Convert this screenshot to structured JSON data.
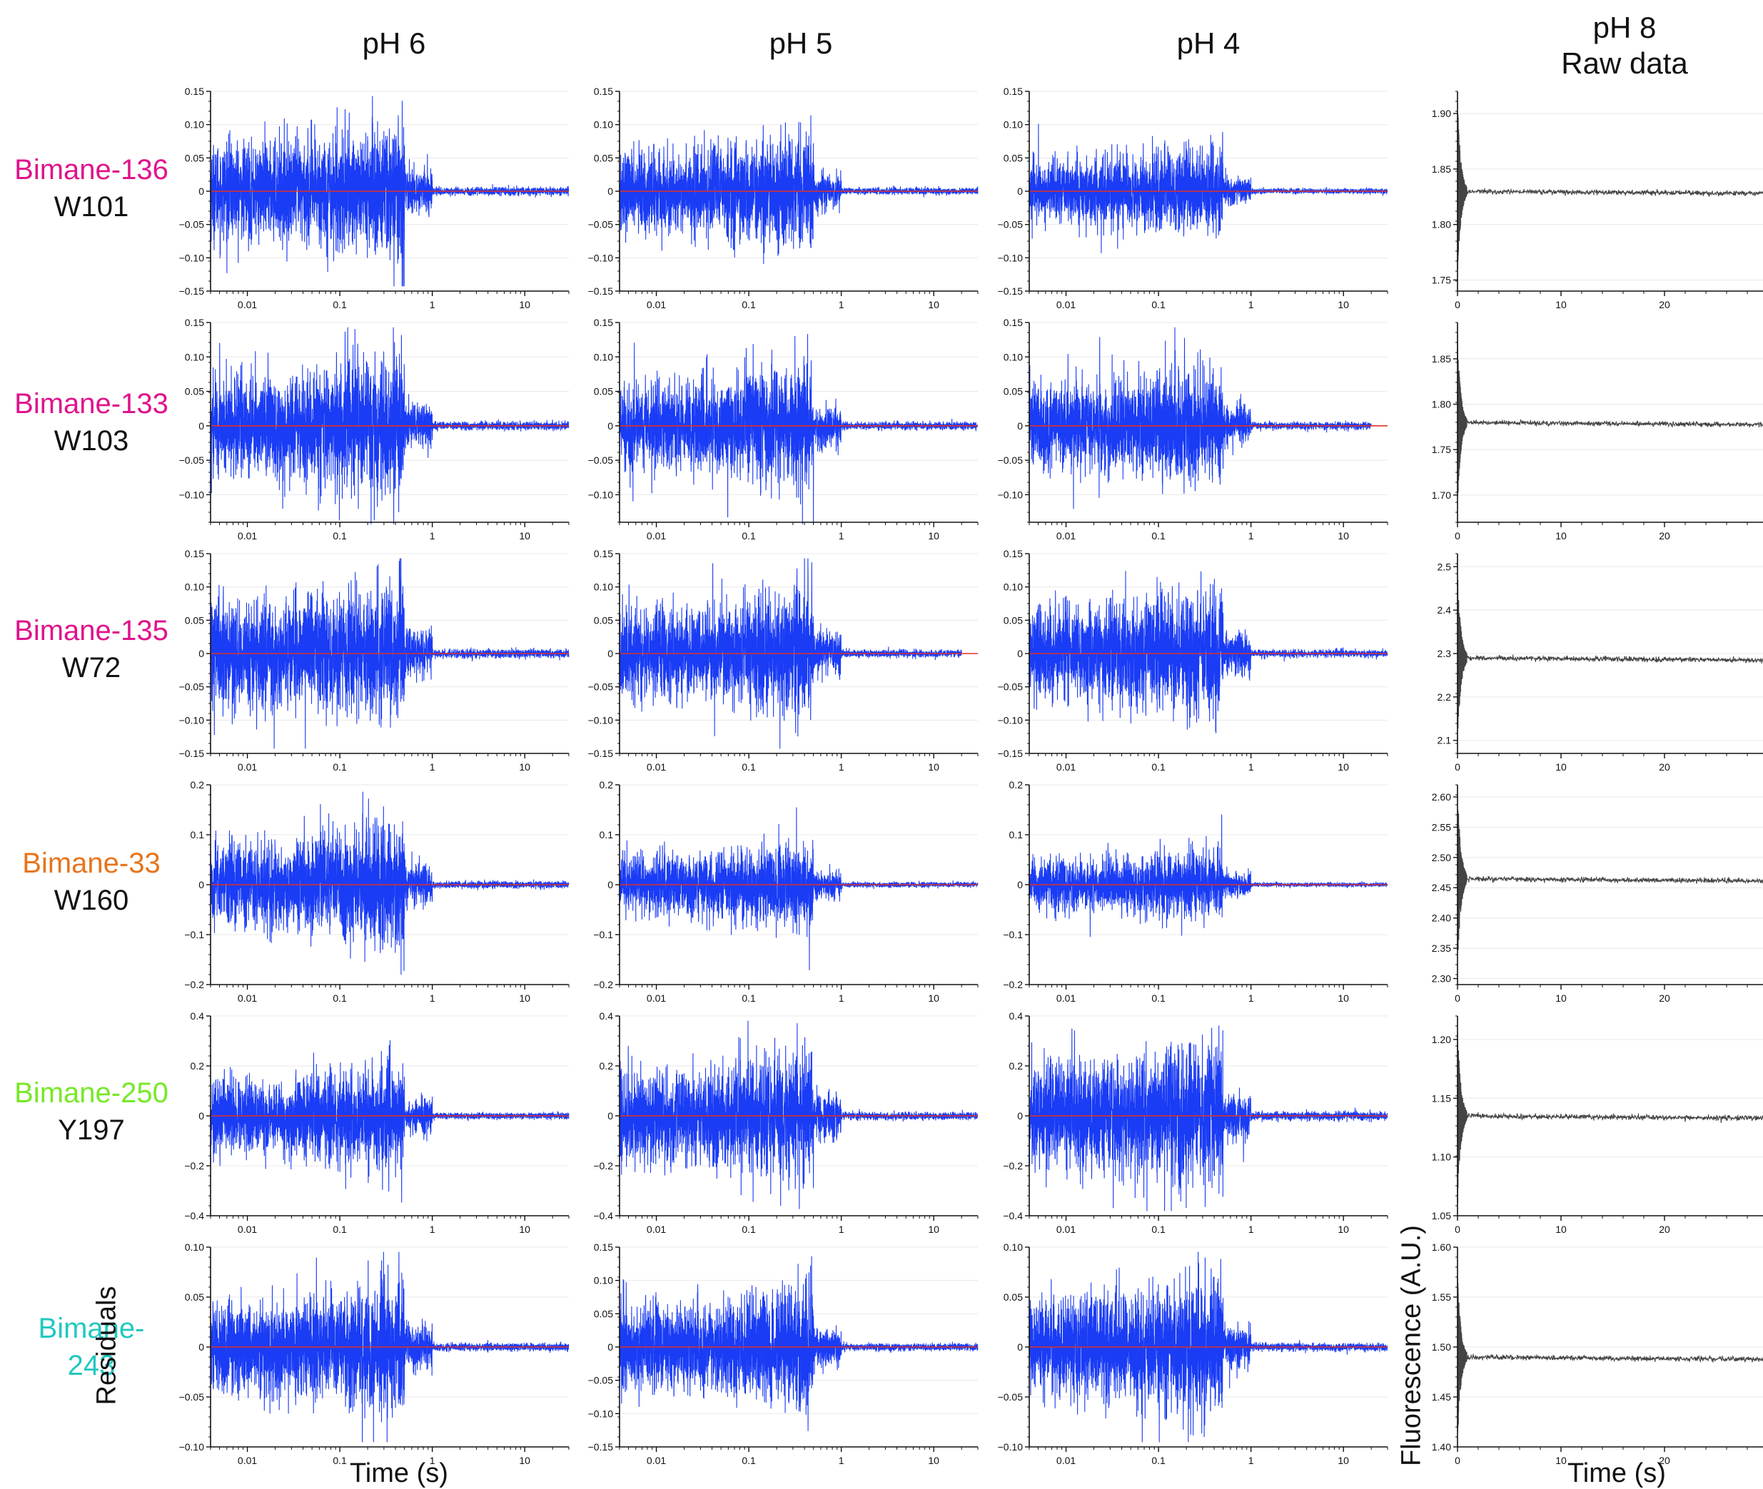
{
  "figure": {
    "col_headers": [
      "pH 6",
      "pH 5",
      "pH 4",
      "pH 8",
      "Raw data"
    ],
    "rows": [
      {
        "label_line1": "Bimane-136",
        "label_line2": "W101",
        "color1": "#e0138c",
        "color2": "#111111"
      },
      {
        "label_line1": "Bimane-133",
        "label_line2": "W103",
        "color1": "#e0138c",
        "color2": "#111111"
      },
      {
        "label_line1": "Bimane-135",
        "label_line2": "W72",
        "color1": "#e0138c",
        "color2": "#111111"
      },
      {
        "label_line1": "Bimane-33",
        "label_line2": "W160",
        "color1": "#e8741c",
        "color2": "#111111"
      },
      {
        "label_line1": "Bimane-250",
        "label_line2": "Y197",
        "color1": "#77e827",
        "color2": "#111111"
      },
      {
        "label_line1": "Bimane-",
        "label_line2": "243",
        "color1": "#22c8c0",
        "color2": "#22c8c0"
      }
    ],
    "residuals_ylabel": "Residuals",
    "raw_ylabel": "Fluorescence (A.U.)",
    "residuals_xlabel": "Time (s)",
    "raw_xlabel": "Time (s)",
    "colors": {
      "residual_trace": "#1a3cf5",
      "zero_line": "#e0302a",
      "raw_trace": "#444444",
      "grid": "#e8e8e8",
      "axis": "#111111"
    }
  },
  "chart_data": [
    {
      "type": "line",
      "panel": "residuals",
      "row": 0,
      "col": "pH 6",
      "xscale": "log",
      "xlim": [
        0.004,
        30
      ],
      "xticks": [
        "0.01",
        "0.1",
        "1",
        "10"
      ],
      "ylim": [
        -0.15,
        0.15
      ],
      "yticks": [
        "0.15",
        "0.10",
        "0.05",
        "0",
        "−0.05",
        "−0.10",
        "−0.15"
      ],
      "amplitude": 0.085,
      "end_time": 30
    },
    {
      "type": "line",
      "panel": "residuals",
      "row": 0,
      "col": "pH 5",
      "xscale": "log",
      "xlim": [
        0.004,
        30
      ],
      "xticks": [
        "0.01",
        "0.1",
        "1",
        "10"
      ],
      "ylim": [
        -0.15,
        0.15
      ],
      "yticks": [
        "0.15",
        "0.10",
        "0.05",
        "0",
        "−0.05",
        "−0.10",
        "−0.15"
      ],
      "amplitude": 0.07,
      "end_time": 30
    },
    {
      "type": "line",
      "panel": "residuals",
      "row": 0,
      "col": "pH 4",
      "xscale": "log",
      "xlim": [
        0.004,
        30
      ],
      "xticks": [
        "0.01",
        "0.1",
        "1",
        "10"
      ],
      "ylim": [
        -0.15,
        0.15
      ],
      "yticks": [
        "0.15",
        "0.10",
        "0.05",
        "0",
        "−0.05",
        "−0.10",
        "−0.15"
      ],
      "amplitude": 0.055,
      "end_time": 30
    },
    {
      "type": "line",
      "panel": "raw",
      "row": 0,
      "col": "pH 8 Raw data",
      "xlim": [
        0,
        30
      ],
      "xticks": [
        "0",
        "10",
        "20"
      ],
      "ylim": [
        1.74,
        1.92
      ],
      "yticks": [
        "1.90",
        "1.85",
        "1.80",
        "1.75"
      ],
      "plateau": 1.83,
      "spike_range": [
        1.75,
        1.92
      ]
    },
    {
      "type": "line",
      "panel": "residuals",
      "row": 1,
      "col": "pH 6",
      "xscale": "log",
      "xlim": [
        0.004,
        30
      ],
      "xticks": [
        "0.01",
        "0.1",
        "1",
        "10"
      ],
      "ylim": [
        -0.14,
        0.15
      ],
      "yticks": [
        "0.15",
        "0.10",
        "0.05",
        "0",
        "−0.05",
        "−0.10"
      ],
      "amplitude": 0.085,
      "end_time": 30
    },
    {
      "type": "line",
      "panel": "residuals",
      "row": 1,
      "col": "pH 5",
      "xscale": "log",
      "xlim": [
        0.004,
        30
      ],
      "xticks": [
        "0.01",
        "0.1",
        "1",
        "10"
      ],
      "ylim": [
        -0.14,
        0.15
      ],
      "yticks": [
        "0.15",
        "0.10",
        "0.05",
        "0",
        "−0.05",
        "−0.10"
      ],
      "amplitude": 0.075,
      "end_time": 30
    },
    {
      "type": "line",
      "panel": "residuals",
      "row": 1,
      "col": "pH 4",
      "xscale": "log",
      "xlim": [
        0.004,
        30
      ],
      "xticks": [
        "0.01",
        "0.1",
        "1",
        "10"
      ],
      "ylim": [
        -0.14,
        0.15
      ],
      "yticks": [
        "0.15",
        "0.10",
        "0.05",
        "0",
        "−0.05",
        "−0.10"
      ],
      "amplitude": 0.075,
      "end_time": 20
    },
    {
      "type": "line",
      "panel": "raw",
      "row": 1,
      "col": "pH 8 Raw data",
      "xlim": [
        0,
        30
      ],
      "xticks": [
        "0",
        "10",
        "20"
      ],
      "ylim": [
        1.67,
        1.89
      ],
      "yticks": [
        "1.85",
        "1.80",
        "1.75",
        "1.70"
      ],
      "plateau": 1.78,
      "spike_range": [
        1.68,
        1.88
      ]
    },
    {
      "type": "line",
      "panel": "residuals",
      "row": 2,
      "col": "pH 6",
      "xscale": "log",
      "xlim": [
        0.004,
        30
      ],
      "xticks": [
        "0.01",
        "0.1",
        "1",
        "10"
      ],
      "ylim": [
        -0.15,
        0.15
      ],
      "yticks": [
        "0.15",
        "0.10",
        "0.05",
        "0",
        "−0.05",
        "−0.10",
        "−0.15"
      ],
      "amplitude": 0.09,
      "end_time": 30
    },
    {
      "type": "line",
      "panel": "residuals",
      "row": 2,
      "col": "pH 5",
      "xscale": "log",
      "xlim": [
        0.004,
        30
      ],
      "xticks": [
        "0.01",
        "0.1",
        "1",
        "10"
      ],
      "ylim": [
        -0.15,
        0.15
      ],
      "yticks": [
        "0.15",
        "0.10",
        "0.05",
        "0",
        "−0.05",
        "−0.10",
        "−0.15"
      ],
      "amplitude": 0.08,
      "end_time": 20
    },
    {
      "type": "line",
      "panel": "residuals",
      "row": 2,
      "col": "pH 4",
      "xscale": "log",
      "xlim": [
        0.004,
        30
      ],
      "xticks": [
        "0.01",
        "0.1",
        "1",
        "10"
      ],
      "ylim": [
        -0.15,
        0.15
      ],
      "yticks": [
        "0.15",
        "0.10",
        "0.05",
        "0",
        "−0.05",
        "−0.10",
        "−0.15"
      ],
      "amplitude": 0.08,
      "end_time": 30
    },
    {
      "type": "line",
      "panel": "raw",
      "row": 2,
      "col": "pH 8 Raw data",
      "xlim": [
        0,
        30
      ],
      "xticks": [
        "0",
        "10",
        "20"
      ],
      "ylim": [
        2.07,
        2.53
      ],
      "yticks": [
        "2.5",
        "2.4",
        "2.3",
        "2.2",
        "2.1"
      ],
      "plateau": 2.29,
      "spike_range": [
        2.09,
        2.52
      ]
    },
    {
      "type": "line",
      "panel": "residuals",
      "row": 3,
      "col": "pH 6",
      "xscale": "log",
      "xlim": [
        0.004,
        30
      ],
      "xticks": [
        "0.01",
        "0.1",
        "1",
        "10"
      ],
      "ylim": [
        -0.2,
        0.2
      ],
      "yticks": [
        "0.2",
        "0.1",
        "0",
        "−0.1",
        "−0.2"
      ],
      "amplitude": 0.1,
      "end_time": 30
    },
    {
      "type": "line",
      "panel": "residuals",
      "row": 3,
      "col": "pH 5",
      "xscale": "log",
      "xlim": [
        0.004,
        30
      ],
      "xticks": [
        "0.01",
        "0.1",
        "1",
        "10"
      ],
      "ylim": [
        -0.2,
        0.2
      ],
      "yticks": [
        "0.2",
        "0.1",
        "0",
        "−0.1",
        "−0.2"
      ],
      "amplitude": 0.07,
      "end_time": 30
    },
    {
      "type": "line",
      "panel": "residuals",
      "row": 3,
      "col": "pH 4",
      "xscale": "log",
      "xlim": [
        0.004,
        30
      ],
      "xticks": [
        "0.01",
        "0.1",
        "1",
        "10"
      ],
      "ylim": [
        -0.2,
        0.2
      ],
      "yticks": [
        "0.2",
        "0.1",
        "0",
        "−0.1",
        "−0.2"
      ],
      "amplitude": 0.06,
      "end_time": 30
    },
    {
      "type": "line",
      "panel": "raw",
      "row": 3,
      "col": "pH 8 Raw data",
      "xlim": [
        0,
        30
      ],
      "xticks": [
        "0",
        "10",
        "20"
      ],
      "ylim": [
        2.29,
        2.62
      ],
      "yticks": [
        "2.60",
        "2.55",
        "2.50",
        "2.45",
        "2.40",
        "2.35",
        "2.30"
      ],
      "plateau": 2.465,
      "spike_range": [
        2.3,
        2.61
      ]
    },
    {
      "type": "line",
      "panel": "residuals",
      "row": 4,
      "col": "pH 6",
      "xscale": "log",
      "xlim": [
        0.004,
        30
      ],
      "xticks": [
        "0.01",
        "0.1",
        "1",
        "10"
      ],
      "ylim": [
        -0.4,
        0.4
      ],
      "yticks": [
        "0.4",
        "0.2",
        "0",
        "−0.2",
        "−0.4"
      ],
      "amplitude": 0.18,
      "end_time": 30
    },
    {
      "type": "line",
      "panel": "residuals",
      "row": 4,
      "col": "pH 5",
      "xscale": "log",
      "xlim": [
        0.004,
        30
      ],
      "xticks": [
        "0.01",
        "0.1",
        "1",
        "10"
      ],
      "ylim": [
        -0.4,
        0.4
      ],
      "yticks": [
        "0.4",
        "0.2",
        "0",
        "−0.2",
        "−0.4"
      ],
      "amplitude": 0.22,
      "end_time": 30
    },
    {
      "type": "line",
      "panel": "residuals",
      "row": 4,
      "col": "pH 4",
      "xscale": "log",
      "xlim": [
        0.004,
        30
      ],
      "xticks": [
        "0.01",
        "0.1",
        "1",
        "10"
      ],
      "ylim": [
        -0.4,
        0.4
      ],
      "yticks": [
        "0.4",
        "0.2",
        "0",
        "−0.2",
        "−0.4"
      ],
      "amplitude": 0.25,
      "end_time": 30
    },
    {
      "type": "line",
      "panel": "raw",
      "row": 4,
      "col": "pH 8 Raw data",
      "xlim": [
        0,
        30
      ],
      "xticks": [
        "0",
        "10",
        "20"
      ],
      "ylim": [
        1.05,
        1.22
      ],
      "yticks": [
        "1.20",
        "1.15",
        "1.10",
        "1.05"
      ],
      "plateau": 1.135,
      "spike_range": [
        1.06,
        1.22
      ]
    },
    {
      "type": "line",
      "panel": "residuals",
      "row": 5,
      "col": "pH 6",
      "xscale": "log",
      "xlim": [
        0.004,
        30
      ],
      "xticks": [
        "0.01",
        "0.1",
        "1",
        "10"
      ],
      "ylim": [
        -0.1,
        0.1
      ],
      "yticks": [
        "0.10",
        "0.05",
        "0",
        "−0.05",
        "−0.10"
      ],
      "amplitude": 0.055,
      "end_time": 30
    },
    {
      "type": "line",
      "panel": "residuals",
      "row": 5,
      "col": "pH 5",
      "xscale": "log",
      "xlim": [
        0.004,
        30
      ],
      "xticks": [
        "0.01",
        "0.1",
        "1",
        "10"
      ],
      "ylim": [
        -0.15,
        0.15
      ],
      "yticks": [
        "0.15",
        "0.10",
        "0.05",
        "0",
        "−0.05",
        "−0.10",
        "−0.15"
      ],
      "amplitude": 0.075,
      "end_time": 30
    },
    {
      "type": "line",
      "panel": "residuals",
      "row": 5,
      "col": "pH 4",
      "xscale": "log",
      "xlim": [
        0.004,
        30
      ],
      "xticks": [
        "0.01",
        "0.1",
        "1",
        "10"
      ],
      "ylim": [
        -0.1,
        0.1
      ],
      "yticks": [
        "0.10",
        "0.05",
        "0",
        "−0.05",
        "−0.10"
      ],
      "amplitude": 0.055,
      "end_time": 30
    },
    {
      "type": "line",
      "panel": "raw",
      "row": 5,
      "col": "pH 8 Raw data",
      "xlim": [
        0,
        30
      ],
      "xticks": [
        "0",
        "10",
        "20"
      ],
      "ylim": [
        1.4,
        1.6
      ],
      "yticks": [
        "1.60",
        "1.55",
        "1.50",
        "1.45",
        "1.40"
      ],
      "plateau": 1.49,
      "spike_range": [
        1.41,
        1.59
      ]
    }
  ]
}
